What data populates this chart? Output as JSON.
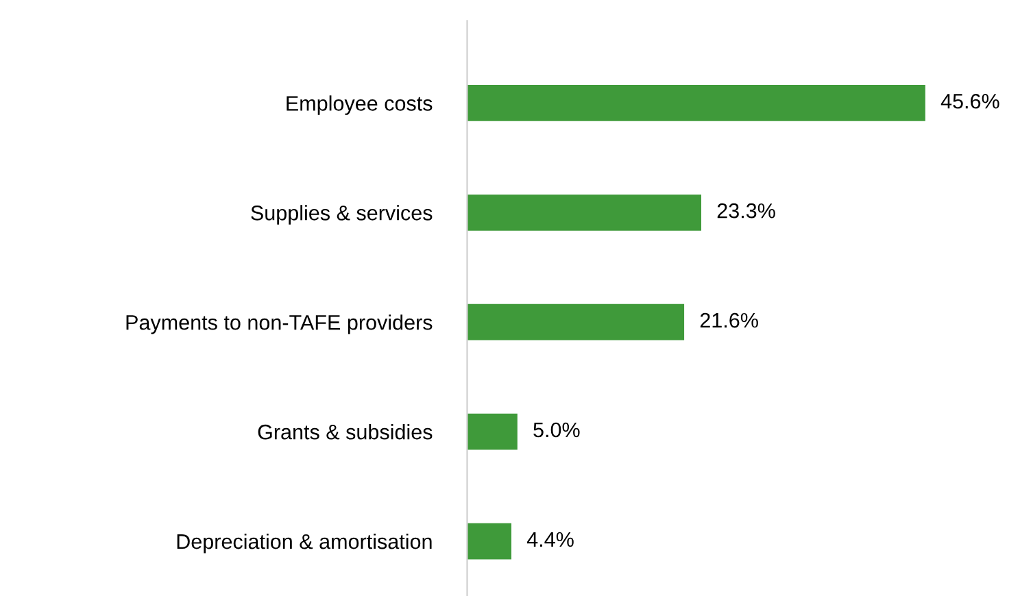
{
  "chart_data": {
    "type": "bar",
    "orientation": "horizontal",
    "categories": [
      "Employee costs",
      "Supplies & services",
      "Payments to non-TAFE providers",
      "Grants & subsidies",
      "Depreciation & amortisation"
    ],
    "values": [
      45.6,
      23.3,
      21.6,
      5.0,
      4.4
    ],
    "value_labels": [
      "45.6%",
      "23.3%",
      "21.6%",
      "5.0%",
      "4.4%"
    ],
    "color": "#3f9a3a",
    "grid": false,
    "legend": false
  }
}
